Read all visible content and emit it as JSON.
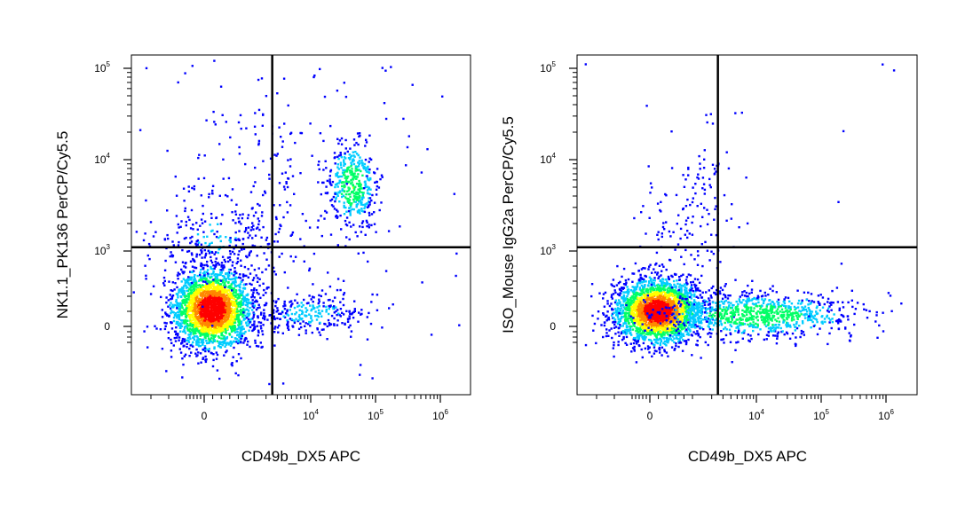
{
  "chart_data": [
    {
      "type": "scatter",
      "subtype": "flow-cytometry-pseudocolor-density",
      "xlabel": "CD49b_DX5 APC",
      "ylabel": "NK1.1_PK136 PerCP/Cy5.5",
      "x_scale": "biexponential",
      "y_scale": "biexponential",
      "x_ticks": [
        "0",
        "10^4",
        "10^5",
        "10^6"
      ],
      "y_ticks": [
        "0",
        "10^3",
        "10^4",
        "10^5"
      ],
      "quadrant_gate": {
        "x": 2500,
        "y": 1100
      },
      "populations": [
        {
          "label": "double-negative",
          "x_center": 300,
          "y_center": 200,
          "density": "very high"
        },
        {
          "label": "NK1.1-high DX5-high",
          "x_center": 50000,
          "y_center": 6000,
          "density": "medium"
        },
        {
          "label": "DX5-positive NK1.1-low",
          "x_center": 10000,
          "y_center": 180,
          "density": "low"
        },
        {
          "label": "NK1.1-positive DX5-low",
          "x_center": 200,
          "y_center": 2000,
          "density": "low"
        }
      ],
      "colormap": [
        "#0000ff",
        "#00ccff",
        "#00ff66",
        "#ffff00",
        "#ff8800",
        "#ff0000"
      ]
    },
    {
      "type": "scatter",
      "subtype": "flow-cytometry-pseudocolor-density",
      "xlabel": "CD49b_DX5 APC",
      "ylabel": "ISO_Mouse IgG2a PerCP/Cy5.5",
      "x_scale": "biexponential",
      "y_scale": "biexponential",
      "x_ticks": [
        "0",
        "10^4",
        "10^5",
        "10^6"
      ],
      "y_ticks": [
        "0",
        "10^3",
        "10^4",
        "10^5"
      ],
      "quadrant_gate": {
        "x": 2500,
        "y": 1100
      },
      "populations": [
        {
          "label": "double-negative",
          "x_center": 300,
          "y_center": 200,
          "density": "very high"
        },
        {
          "label": "DX5-positive",
          "x_center": 20000,
          "y_center": 150,
          "density": "medium"
        },
        {
          "label": "isotype background",
          "x_center": 1500,
          "y_center": 2000,
          "density": "very low"
        }
      ],
      "colormap": [
        "#0000ff",
        "#00ccff",
        "#00ff66",
        "#ffff00",
        "#ff8800",
        "#ff0000"
      ]
    }
  ]
}
